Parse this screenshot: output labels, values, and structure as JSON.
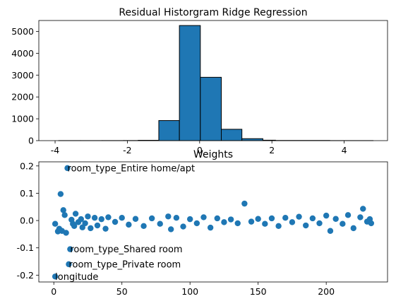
{
  "chart_data": [
    {
      "type": "bar",
      "title": "Residual Historgram Ridge Regression",
      "xlabel": "",
      "ylabel": "",
      "xlim": [
        -4.45,
        5.2
      ],
      "ylim": [
        0,
        5500
      ],
      "xticks": [
        "-4",
        "-2",
        "0",
        "2",
        "4"
      ],
      "xtick_values": [
        -4,
        -2,
        0,
        2,
        4
      ],
      "yticks": [
        "0",
        "1000",
        "2000",
        "3000",
        "4000",
        "5000"
      ],
      "ytick_values": [
        0,
        1000,
        2000,
        3000,
        4000,
        5000
      ],
      "bin_edges": [
        -3.9,
        -3.3,
        -2.7,
        -2.1,
        -1.7,
        -1.13,
        -0.56,
        0.02,
        0.6,
        1.17,
        1.75,
        2.1,
        3.6,
        4.8
      ],
      "values": [
        2,
        2,
        3,
        5,
        15,
        920,
        5270,
        2900,
        520,
        90,
        20,
        8,
        2
      ],
      "grid": false
    },
    {
      "type": "scatter",
      "title": "Weights",
      "xlabel": "",
      "ylabel": "",
      "xlim": [
        -11,
        245
      ],
      "ylim": [
        -0.225,
        0.215
      ],
      "xticks": [
        "0",
        "50",
        "100",
        "150",
        "200"
      ],
      "xtick_values": [
        0,
        50,
        100,
        150,
        200
      ],
      "yticks": [
        "-0.2",
        "-0.1",
        "0.0",
        "0.1",
        "0.2"
      ],
      "ytick_values": [
        -0.2,
        -0.1,
        0.0,
        0.1,
        0.2
      ],
      "points": [
        [
          1,
          -0.205
        ],
        [
          1,
          -0.012
        ],
        [
          3,
          -0.04
        ],
        [
          4,
          -0.03
        ],
        [
          5,
          0.097
        ],
        [
          6,
          -0.038
        ],
        [
          7,
          0.038
        ],
        [
          8,
          0.02
        ],
        [
          9,
          -0.045
        ],
        [
          10,
          0.192
        ],
        [
          11,
          -0.16
        ],
        [
          12,
          -0.105
        ],
        [
          13,
          0.003
        ],
        [
          14,
          -0.012
        ],
        [
          15,
          -0.02
        ],
        [
          16,
          0.025
        ],
        [
          18,
          -0.006
        ],
        [
          20,
          0.005
        ],
        [
          21,
          -0.025
        ],
        [
          23,
          -0.01
        ],
        [
          25,
          0.015
        ],
        [
          27,
          -0.028
        ],
        [
          30,
          0.01
        ],
        [
          32,
          -0.018
        ],
        [
          35,
          0.005
        ],
        [
          38,
          -0.03
        ],
        [
          40,
          0.012
        ],
        [
          45,
          -0.005
        ],
        [
          50,
          0.01
        ],
        [
          55,
          -0.015
        ],
        [
          60,
          0.006
        ],
        [
          66,
          -0.02
        ],
        [
          72,
          0.008
        ],
        [
          78,
          -0.012
        ],
        [
          84,
          0.015
        ],
        [
          86,
          -0.032
        ],
        [
          90,
          0.01
        ],
        [
          95,
          -0.022
        ],
        [
          100,
          0.005
        ],
        [
          105,
          -0.01
        ],
        [
          110,
          0.012
        ],
        [
          115,
          -0.026
        ],
        [
          120,
          0.008
        ],
        [
          125,
          -0.006
        ],
        [
          130,
          0.004
        ],
        [
          135,
          -0.01
        ],
        [
          140,
          0.062
        ],
        [
          145,
          -0.004
        ],
        [
          150,
          0.006
        ],
        [
          155,
          -0.012
        ],
        [
          160,
          0.008
        ],
        [
          165,
          -0.02
        ],
        [
          170,
          0.01
        ],
        [
          175,
          -0.006
        ],
        [
          180,
          0.014
        ],
        [
          185,
          -0.018
        ],
        [
          190,
          0.008
        ],
        [
          195,
          -0.01
        ],
        [
          200,
          0.018
        ],
        [
          203,
          -0.038
        ],
        [
          207,
          0.006
        ],
        [
          212,
          -0.012
        ],
        [
          216,
          0.02
        ],
        [
          220,
          -0.028
        ],
        [
          225,
          0.012
        ],
        [
          227,
          0.043
        ],
        [
          230,
          -0.004
        ],
        [
          232,
          0.005
        ],
        [
          233,
          -0.01
        ]
      ],
      "annotations": [
        {
          "x": 10,
          "y": 0.192,
          "text": "room_type_Entire home/apt"
        },
        {
          "x": 12,
          "y": -0.105,
          "text": "room_type_Shared room"
        },
        {
          "x": 11,
          "y": -0.16,
          "text": "room_type_Private room"
        },
        {
          "x": 1,
          "y": -0.205,
          "text": "longitude"
        }
      ],
      "grid": false
    }
  ]
}
